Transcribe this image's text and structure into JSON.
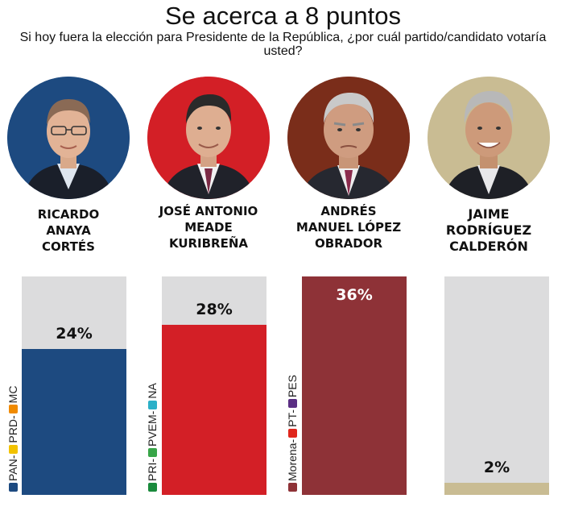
{
  "header": {
    "title": "Se acerca a 8 puntos",
    "subtitle": "Si hoy fuera la elección para Presidente de la República, ¿por cuál partido/candidato votaría usted?"
  },
  "colors": {
    "bar_background": "#dcdcdd",
    "anaya": "#1d4a80",
    "meade": "#d31f26",
    "amlo": "#8e3237",
    "bronco": "#c9bc93"
  },
  "chart_data": {
    "type": "bar",
    "title": "Se acerca a 8 puntos",
    "subtitle": "Si hoy fuera la elección para Presidente de la República, ¿por cuál partido/candidato votaría usted?",
    "categories": [
      "RICARDO ANAYA CORTÉS",
      "JOSÉ ANTONIO MEADE KURIBREÑA",
      "ANDRÉS MANUEL LÓPEZ OBRADOR",
      "JAIME RODRÍGUEZ CALDERÓN"
    ],
    "values": [
      24,
      28,
      36,
      2
    ],
    "value_labels": [
      "24%",
      "28%",
      "36%",
      "2%"
    ],
    "party_labels": [
      "PAN-PRD-MC",
      "PRI-PVEM-NA",
      "Morena-PT-PES",
      ""
    ],
    "ylim": [
      0,
      36
    ],
    "grid": false,
    "legend": "none"
  },
  "candidates": [
    {
      "name_lines": [
        "RICARDO",
        "ANAYA",
        "CORTÉS"
      ],
      "photo_bg": "#1d4a80",
      "party_parts": [
        "PAN-",
        "PRD-",
        "MC"
      ]
    },
    {
      "name_lines": [
        "JOSÉ ANTONIO",
        "MEADE",
        "KURIBREÑA"
      ],
      "photo_bg": "#d31f26",
      "party_parts": [
        "PRI-",
        "PVEM-",
        "NA"
      ]
    },
    {
      "name_lines": [
        "ANDRÉS",
        "MANUEL LÓPEZ",
        "OBRADOR"
      ],
      "photo_bg": "#7a2d1a",
      "party_parts": [
        "Morena-",
        "PT-",
        "PES"
      ]
    },
    {
      "name_lines": [
        "JAIME",
        "RODRÍGUEZ",
        "CALDERÓN"
      ],
      "photo_bg": "#c9bc93",
      "party_parts": []
    }
  ]
}
